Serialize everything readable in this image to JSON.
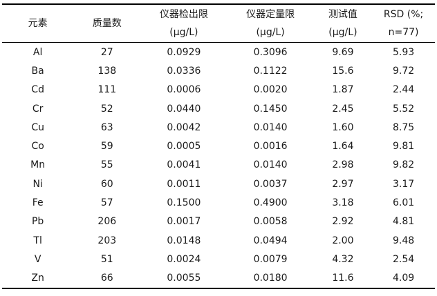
{
  "table": {
    "columns": [
      {
        "label": "元素",
        "sub": ""
      },
      {
        "label": "质量数",
        "sub": ""
      },
      {
        "label": "仪器检出限",
        "sub": "(μg/L)"
      },
      {
        "label": "仪器定量限",
        "sub": "(μg/L)"
      },
      {
        "label": "测试值",
        "sub": "(μg/L)"
      },
      {
        "label": "RSD (%;",
        "sub": "n=77)"
      }
    ],
    "rows": [
      [
        "Al",
        "27",
        "0.0929",
        "0.3096",
        "9.69",
        "5.93"
      ],
      [
        "Ba",
        "138",
        "0.0336",
        "0.1122",
        "15.6",
        "9.72"
      ],
      [
        "Cd",
        "111",
        "0.0006",
        "0.0020",
        "1.87",
        "2.44"
      ],
      [
        "Cr",
        "52",
        "0.0440",
        "0.1450",
        "2.45",
        "5.52"
      ],
      [
        "Cu",
        "63",
        "0.0042",
        "0.0140",
        "1.60",
        "8.75"
      ],
      [
        "Co",
        "59",
        "0.0005",
        "0.0016",
        "1.64",
        "9.81"
      ],
      [
        "Mn",
        "55",
        "0.0041",
        "0.0140",
        "2.98",
        "9.82"
      ],
      [
        "Ni",
        "60",
        "0.0011",
        "0.0037",
        "2.97",
        "3.17"
      ],
      [
        "Fe",
        "57",
        "0.1500",
        "0.4900",
        "3.18",
        "6.01"
      ],
      [
        "Pb",
        "206",
        "0.0017",
        "0.0058",
        "2.92",
        "4.81"
      ],
      [
        "Tl",
        "203",
        "0.0148",
        "0.0494",
        "2.00",
        "9.48"
      ],
      [
        "V",
        "51",
        "0.0024",
        "0.0079",
        "4.32",
        "2.54"
      ],
      [
        "Zn",
        "66",
        "0.0055",
        "0.0180",
        "11.6",
        "4.09"
      ]
    ]
  }
}
